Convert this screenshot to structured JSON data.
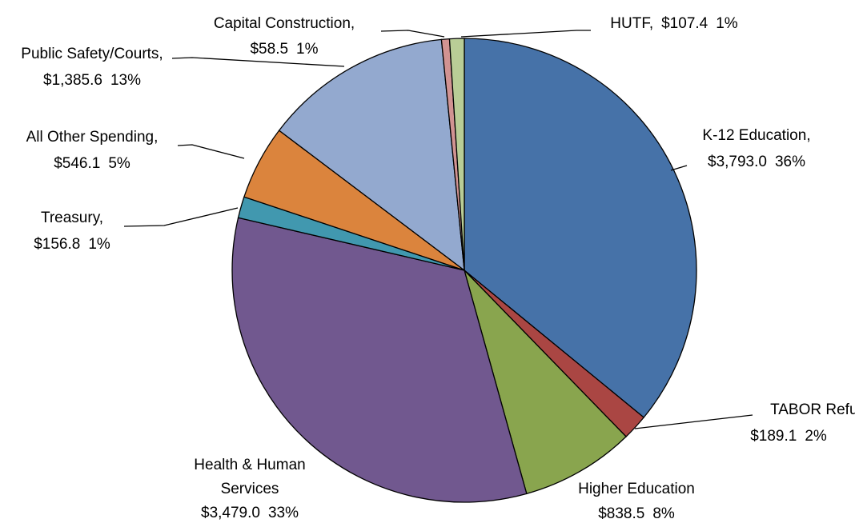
{
  "chart_data": {
    "type": "pie",
    "categories": [
      "K-12 Education,",
      "TABOR Refund,",
      "Higher Education",
      "Health & Human Services",
      "Treasury,",
      "All Other Spending,",
      "Public Safety/Courts,",
      "Capital Construction,",
      "HUTF,"
    ],
    "values": [
      3793.0,
      189.1,
      838.5,
      3479.0,
      156.8,
      546.1,
      1385.6,
      58.5,
      107.4
    ],
    "value_labels": [
      "$3,793.0",
      "$189.1",
      "$838.5",
      "$3,479.0",
      "$156.8",
      "$546.1",
      "$1,385.6",
      "$58.5",
      "$107.4"
    ],
    "percents": [
      36,
      2,
      8,
      33,
      1,
      5,
      13,
      1,
      1
    ],
    "percent_labels": [
      "36%",
      "2%",
      "8%",
      "33%",
      "1%",
      "5%",
      "13%",
      "1%",
      "1%"
    ],
    "colors": [
      "#4672a8",
      "#aa4643",
      "#89a54e",
      "#71588f",
      "#4198af",
      "#db843d",
      "#93a9cf",
      "#d19392",
      "#b9cd96"
    ]
  }
}
